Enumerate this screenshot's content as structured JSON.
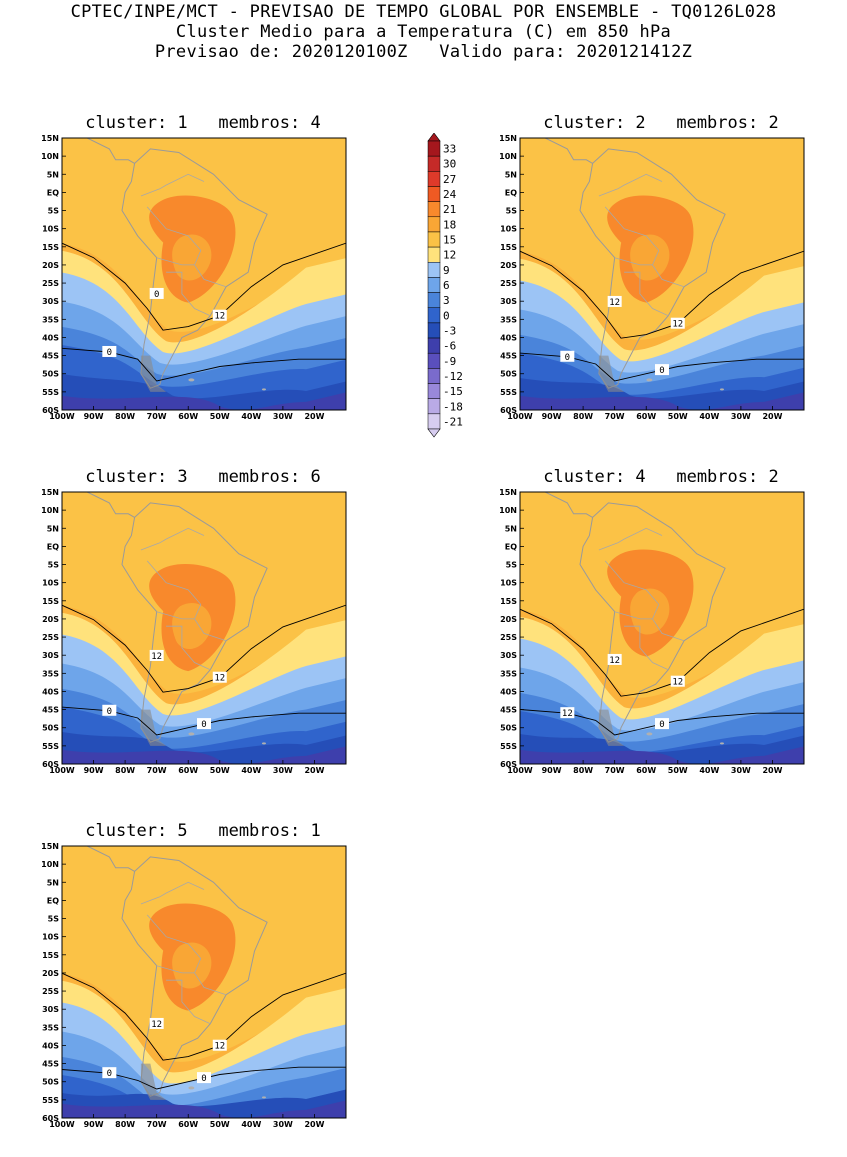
{
  "header": {
    "line1": "CPTEC/INPE/MCT - PREVISAO DE TEMPO GLOBAL POR ENSEMBLE - TQ0126L028",
    "line2": "Cluster Medio para a Temperatura (C) em 850 hPa",
    "line3": "Previsao de: 2020120100Z   Valido para: 2020121412Z"
  },
  "lat_labels": [
    "15N",
    "10N",
    "5N",
    "EQ",
    "5S",
    "10S",
    "15S",
    "20S",
    "25S",
    "30S",
    "35S",
    "40S",
    "45S",
    "50S",
    "55S",
    "60S"
  ],
  "lon_labels": [
    "100W",
    "90W",
    "80W",
    "70W",
    "60W",
    "50W",
    "40W",
    "30W",
    "20W"
  ],
  "colorbar": {
    "labels": [
      "33",
      "30",
      "27",
      "24",
      "21",
      "18",
      "15",
      "12",
      "9",
      "6",
      "3",
      "0",
      "-3",
      "-6",
      "-9",
      "-12",
      "-15",
      "-18",
      "-21"
    ],
    "colors": [
      "#a5171d",
      "#c52a28",
      "#de3a2a",
      "#ef5a23",
      "#f8892c",
      "#f9a635",
      "#fbc246",
      "#ffe27c",
      "#9cc4f5",
      "#6ea5ea",
      "#4a84da",
      "#3064cc",
      "#254eb8",
      "#3e3fac",
      "#5a4fbd",
      "#7a6bcc",
      "#9988da",
      "#b9aae6",
      "#d7cdf0"
    ]
  },
  "clusters": [
    {
      "title": "cluster: 1   membros: 4",
      "contour_labels": [
        "12",
        "0",
        "0"
      ]
    },
    {
      "title": "cluster: 2   membros: 2",
      "contour_labels": [
        "12",
        "12",
        "0",
        "0"
      ]
    },
    {
      "title": "cluster: 3   membros: 6",
      "contour_labels": [
        "12",
        "12",
        "0",
        "0"
      ]
    },
    {
      "title": "cluster: 4   membros: 2",
      "contour_labels": [
        "12",
        "12",
        "12",
        "0"
      ]
    },
    {
      "title": "cluster: 5   membros: 1",
      "contour_labels": [
        "12",
        "12",
        "0",
        "0"
      ]
    }
  ]
}
